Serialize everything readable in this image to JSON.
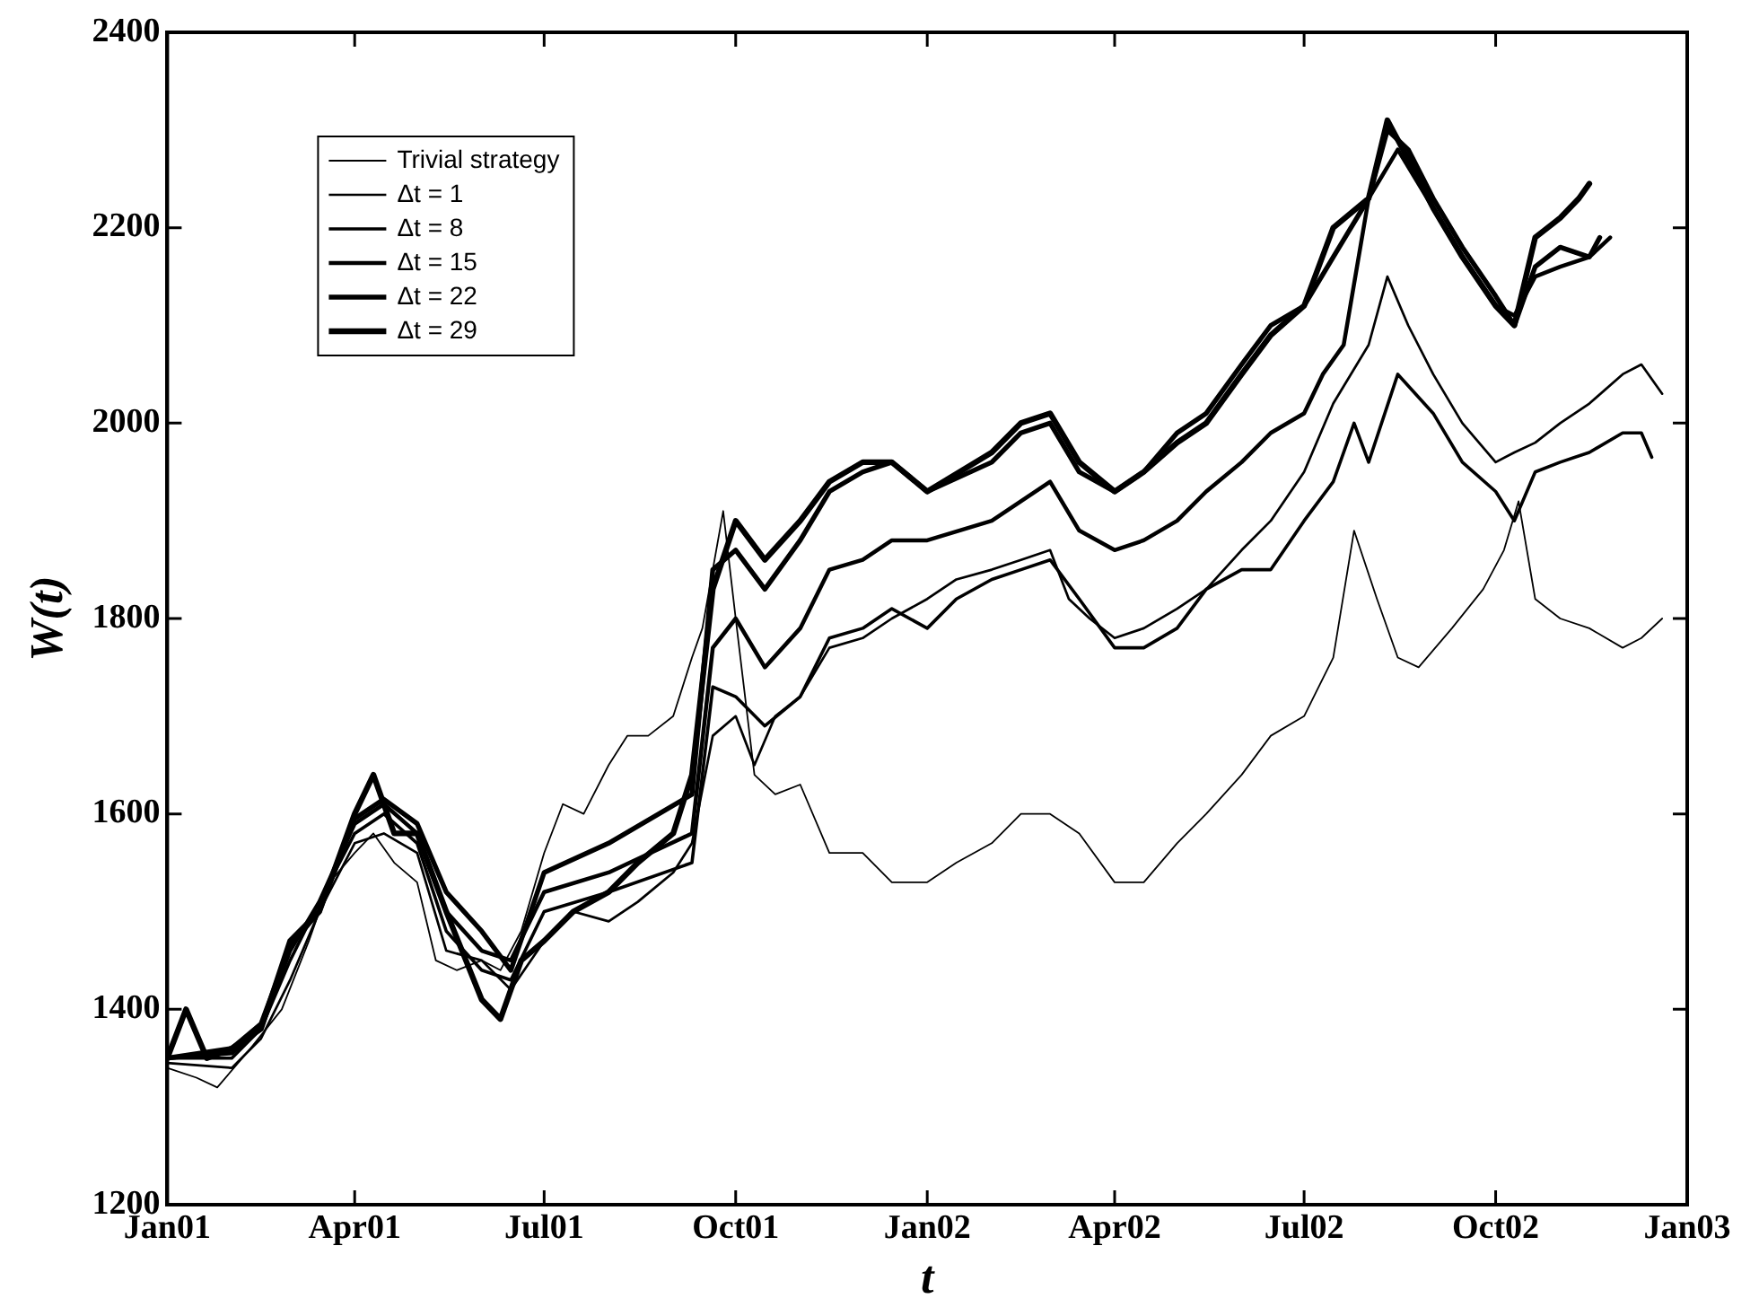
{
  "chart_data": {
    "type": "line",
    "xlabel": "t",
    "ylabel": "W(t)",
    "legend": "top left",
    "grid": false,
    "marker": "none",
    "line_style": "solid",
    "xlim": [
      "2001-01-01",
      "2003-01-01"
    ],
    "ylim": [
      1200,
      2400
    ],
    "xticks": [
      {
        "value": "2001-01-01",
        "label": "Jan01"
      },
      {
        "value": "2001-04-01",
        "label": "Apr01"
      },
      {
        "value": "2001-07-01",
        "label": "Jul01"
      },
      {
        "value": "2001-10-01",
        "label": "Oct01"
      },
      {
        "value": "2002-01-01",
        "label": "Jan02"
      },
      {
        "value": "2002-04-01",
        "label": "Apr02"
      },
      {
        "value": "2002-07-01",
        "label": "Jul02"
      },
      {
        "value": "2002-10-01",
        "label": "Oct02"
      },
      {
        "value": "2003-01-01",
        "label": "Jan03"
      }
    ],
    "yticks": [
      1200,
      1400,
      1600,
      1800,
      2000,
      2200,
      2400
    ],
    "series": [
      {
        "name": "Trivial strategy",
        "color": "#000000",
        "x": [
          "2001-01-01",
          "2001-01-15",
          "2001-01-25",
          "2001-02-10",
          "2001-02-25",
          "2001-03-10",
          "2001-03-20",
          "2001-04-01",
          "2001-04-10",
          "2001-04-20",
          "2001-05-01",
          "2001-05-10",
          "2001-05-20",
          "2001-06-01",
          "2001-06-10",
          "2001-06-20",
          "2001-07-01",
          "2001-07-10",
          "2001-07-20",
          "2001-08-01",
          "2001-08-10",
          "2001-08-20",
          "2001-09-01",
          "2001-09-10",
          "2001-09-15",
          "2001-09-25",
          "2001-10-01",
          "2001-10-10",
          "2001-10-20",
          "2001-11-01",
          "2001-11-15",
          "2001-12-01",
          "2001-12-15",
          "2002-01-01",
          "2002-01-15",
          "2002-02-01",
          "2002-02-15",
          "2002-03-01",
          "2002-03-15",
          "2002-04-01",
          "2002-04-15",
          "2002-05-01",
          "2002-05-15",
          "2002-06-01",
          "2002-06-15",
          "2002-07-01",
          "2002-07-15",
          "2002-07-25",
          "2002-08-05",
          "2002-08-15",
          "2002-08-25",
          "2002-09-10",
          "2002-09-25",
          "2002-10-05",
          "2002-10-12",
          "2002-10-20",
          "2002-11-01",
          "2002-11-15",
          "2002-12-01",
          "2002-12-10",
          "2002-12-20"
        ],
        "values": [
          1340,
          1330,
          1320,
          1360,
          1400,
          1470,
          1530,
          1560,
          1580,
          1550,
          1530,
          1450,
          1440,
          1450,
          1440,
          1480,
          1560,
          1610,
          1600,
          1650,
          1680,
          1680,
          1700,
          1760,
          1790,
          1910,
          1800,
          1640,
          1620,
          1630,
          1560,
          1560,
          1530,
          1530,
          1550,
          1570,
          1600,
          1600,
          1580,
          1530,
          1530,
          1570,
          1600,
          1640,
          1680,
          1700,
          1760,
          1890,
          1820,
          1760,
          1750,
          1790,
          1830,
          1870,
          1920,
          1820,
          1800,
          1790,
          1770,
          1780,
          1800
        ]
      },
      {
        "name": "Δt = 1",
        "color": "#000000",
        "x": [
          "2001-01-01",
          "2001-02-01",
          "2001-02-15",
          "2001-03-01",
          "2001-03-15",
          "2001-04-01",
          "2001-04-15",
          "2001-05-01",
          "2001-05-15",
          "2001-06-01",
          "2001-06-15",
          "2001-07-01",
          "2001-07-15",
          "2001-08-01",
          "2001-08-15",
          "2001-09-01",
          "2001-09-10",
          "2001-09-20",
          "2001-10-01",
          "2001-10-10",
          "2001-10-20",
          "2001-11-01",
          "2001-11-15",
          "2001-12-01",
          "2001-12-15",
          "2002-01-01",
          "2002-01-15",
          "2002-02-01",
          "2002-02-15",
          "2002-03-01",
          "2002-03-10",
          "2002-03-20",
          "2002-04-01",
          "2002-04-15",
          "2002-05-01",
          "2002-05-15",
          "2002-06-01",
          "2002-06-15",
          "2002-07-01",
          "2002-07-15",
          "2002-08-01",
          "2002-08-10",
          "2002-08-20",
          "2002-09-01",
          "2002-09-15",
          "2002-10-01",
          "2002-10-10",
          "2002-10-20",
          "2002-11-01",
          "2002-11-15",
          "2002-12-01",
          "2002-12-10",
          "2002-12-20"
        ],
        "values": [
          1345,
          1340,
          1370,
          1430,
          1500,
          1570,
          1580,
          1560,
          1460,
          1450,
          1420,
          1470,
          1500,
          1490,
          1510,
          1540,
          1570,
          1680,
          1700,
          1650,
          1700,
          1720,
          1770,
          1780,
          1800,
          1820,
          1840,
          1850,
          1860,
          1870,
          1820,
          1800,
          1780,
          1790,
          1810,
          1830,
          1870,
          1900,
          1950,
          2020,
          2080,
          2150,
          2100,
          2050,
          2000,
          1960,
          1970,
          1980,
          2000,
          2020,
          2050,
          2060,
          2030
        ]
      },
      {
        "name": "Δt = 8",
        "color": "#000000",
        "x": [
          "2001-01-01",
          "2001-02-01",
          "2001-02-15",
          "2001-03-01",
          "2001-03-15",
          "2001-04-01",
          "2001-04-15",
          "2001-05-01",
          "2001-05-15",
          "2001-06-01",
          "2001-06-15",
          "2001-07-01",
          "2001-08-01",
          "2001-09-10",
          "2001-09-20",
          "2001-10-01",
          "2001-10-15",
          "2001-11-01",
          "2001-11-15",
          "2001-12-01",
          "2001-12-15",
          "2002-01-01",
          "2002-01-15",
          "2002-02-01",
          "2002-02-15",
          "2002-03-01",
          "2002-03-15",
          "2002-04-01",
          "2002-04-15",
          "2002-05-01",
          "2002-05-15",
          "2002-06-01",
          "2002-06-15",
          "2002-07-01",
          "2002-07-15",
          "2002-07-25",
          "2002-08-01",
          "2002-08-15",
          "2002-09-01",
          "2002-09-15",
          "2002-10-01",
          "2002-10-10",
          "2002-10-20",
          "2002-11-01",
          "2002-11-15",
          "2002-12-01",
          "2002-12-10",
          "2002-12-15"
        ],
        "values": [
          1350,
          1350,
          1380,
          1450,
          1510,
          1580,
          1600,
          1570,
          1480,
          1440,
          1430,
          1500,
          1520,
          1550,
          1730,
          1720,
          1690,
          1720,
          1780,
          1790,
          1810,
          1790,
          1820,
          1840,
          1850,
          1860,
          1820,
          1770,
          1770,
          1790,
          1830,
          1850,
          1850,
          1900,
          1940,
          2000,
          1960,
          2050,
          2010,
          1960,
          1930,
          1900,
          1950,
          1960,
          1970,
          1990,
          1990,
          1965
        ]
      },
      {
        "name": "Δt = 15",
        "color": "#000000",
        "x": [
          "2001-01-01",
          "2001-02-01",
          "2001-02-15",
          "2001-03-01",
          "2001-03-15",
          "2001-04-01",
          "2001-04-15",
          "2001-05-01",
          "2001-05-15",
          "2001-06-01",
          "2001-06-15",
          "2001-07-01",
          "2001-08-01",
          "2001-09-10",
          "2001-09-20",
          "2001-10-01",
          "2001-10-15",
          "2001-11-01",
          "2001-11-15",
          "2001-12-01",
          "2001-12-15",
          "2002-01-01",
          "2002-02-01",
          "2002-02-15",
          "2002-03-01",
          "2002-03-15",
          "2002-04-01",
          "2002-04-15",
          "2002-05-01",
          "2002-05-15",
          "2002-06-01",
          "2002-06-15",
          "2002-07-01",
          "2002-07-10",
          "2002-07-20",
          "2002-08-01",
          "2002-08-15",
          "2002-09-01",
          "2002-09-15",
          "2002-10-01",
          "2002-10-10",
          "2002-10-20",
          "2002-11-01",
          "2002-11-15",
          "2002-11-25"
        ],
        "values": [
          1350,
          1355,
          1380,
          1460,
          1510,
          1590,
          1610,
          1580,
          1500,
          1460,
          1450,
          1520,
          1540,
          1580,
          1770,
          1800,
          1750,
          1790,
          1850,
          1860,
          1880,
          1880,
          1900,
          1920,
          1940,
          1890,
          1870,
          1880,
          1900,
          1930,
          1960,
          1990,
          2010,
          2050,
          2080,
          2230,
          2280,
          2220,
          2170,
          2120,
          2110,
          2150,
          2160,
          2170,
          2190
        ]
      },
      {
        "name": "Δt = 22",
        "color": "#000000",
        "x": [
          "2001-01-01",
          "2001-02-01",
          "2001-02-15",
          "2001-03-01",
          "2001-03-15",
          "2001-04-01",
          "2001-04-15",
          "2001-05-01",
          "2001-05-15",
          "2001-06-01",
          "2001-06-15",
          "2001-07-01",
          "2001-08-01",
          "2001-09-10",
          "2001-09-20",
          "2001-10-01",
          "2001-10-15",
          "2001-11-01",
          "2001-11-15",
          "2001-12-01",
          "2001-12-15",
          "2002-01-01",
          "2002-02-01",
          "2002-02-15",
          "2002-03-01",
          "2002-03-15",
          "2002-04-01",
          "2002-04-15",
          "2002-05-01",
          "2002-05-15",
          "2002-06-01",
          "2002-06-15",
          "2002-07-01",
          "2002-07-15",
          "2002-08-01",
          "2002-08-10",
          "2002-08-20",
          "2002-09-01",
          "2002-09-15",
          "2002-10-01",
          "2002-10-10",
          "2002-10-20",
          "2002-11-01",
          "2002-11-15",
          "2002-11-20"
        ],
        "values": [
          1350,
          1360,
          1385,
          1465,
          1500,
          1595,
          1615,
          1590,
          1520,
          1480,
          1440,
          1540,
          1570,
          1620,
          1850,
          1870,
          1830,
          1880,
          1930,
          1950,
          1960,
          1930,
          1960,
          1990,
          2000,
          1950,
          1930,
          1950,
          1990,
          2010,
          2060,
          2100,
          2120,
          2170,
          2230,
          2300,
          2280,
          2230,
          2180,
          2130,
          2100,
          2160,
          2180,
          2170,
          2190
        ]
      },
      {
        "name": "Δt = 29",
        "color": "#000000",
        "x": [
          "2001-01-01",
          "2001-01-10",
          "2001-01-20",
          "2001-02-01",
          "2001-02-15",
          "2001-03-01",
          "2001-03-15",
          "2001-04-01",
          "2001-04-10",
          "2001-04-20",
          "2001-05-01",
          "2001-05-15",
          "2001-06-01",
          "2001-06-10",
          "2001-06-20",
          "2001-07-01",
          "2001-07-15",
          "2001-08-01",
          "2001-08-15",
          "2001-09-01",
          "2001-09-10",
          "2001-09-20",
          "2001-10-01",
          "2001-10-15",
          "2001-11-01",
          "2001-11-15",
          "2001-12-01",
          "2001-12-15",
          "2002-01-01",
          "2002-02-01",
          "2002-02-15",
          "2002-03-01",
          "2002-03-15",
          "2002-04-01",
          "2002-04-15",
          "2002-05-01",
          "2002-05-15",
          "2002-06-01",
          "2002-06-15",
          "2002-07-01",
          "2002-07-15",
          "2002-08-01",
          "2002-08-10",
          "2002-08-20",
          "2002-09-01",
          "2002-09-15",
          "2002-10-01",
          "2002-10-10",
          "2002-10-20",
          "2002-11-01",
          "2002-11-10",
          "2002-11-15"
        ],
        "values": [
          1350,
          1400,
          1350,
          1360,
          1380,
          1470,
          1500,
          1600,
          1640,
          1580,
          1580,
          1500,
          1410,
          1390,
          1450,
          1470,
          1500,
          1520,
          1550,
          1580,
          1640,
          1830,
          1900,
          1860,
          1900,
          1940,
          1960,
          1960,
          1930,
          1970,
          2000,
          2010,
          1960,
          1930,
          1950,
          1980,
          2000,
          2050,
          2090,
          2120,
          2200,
          2230,
          2310,
          2270,
          2220,
          2170,
          2120,
          2100,
          2190,
          2210,
          2230,
          2245
        ]
      }
    ]
  }
}
